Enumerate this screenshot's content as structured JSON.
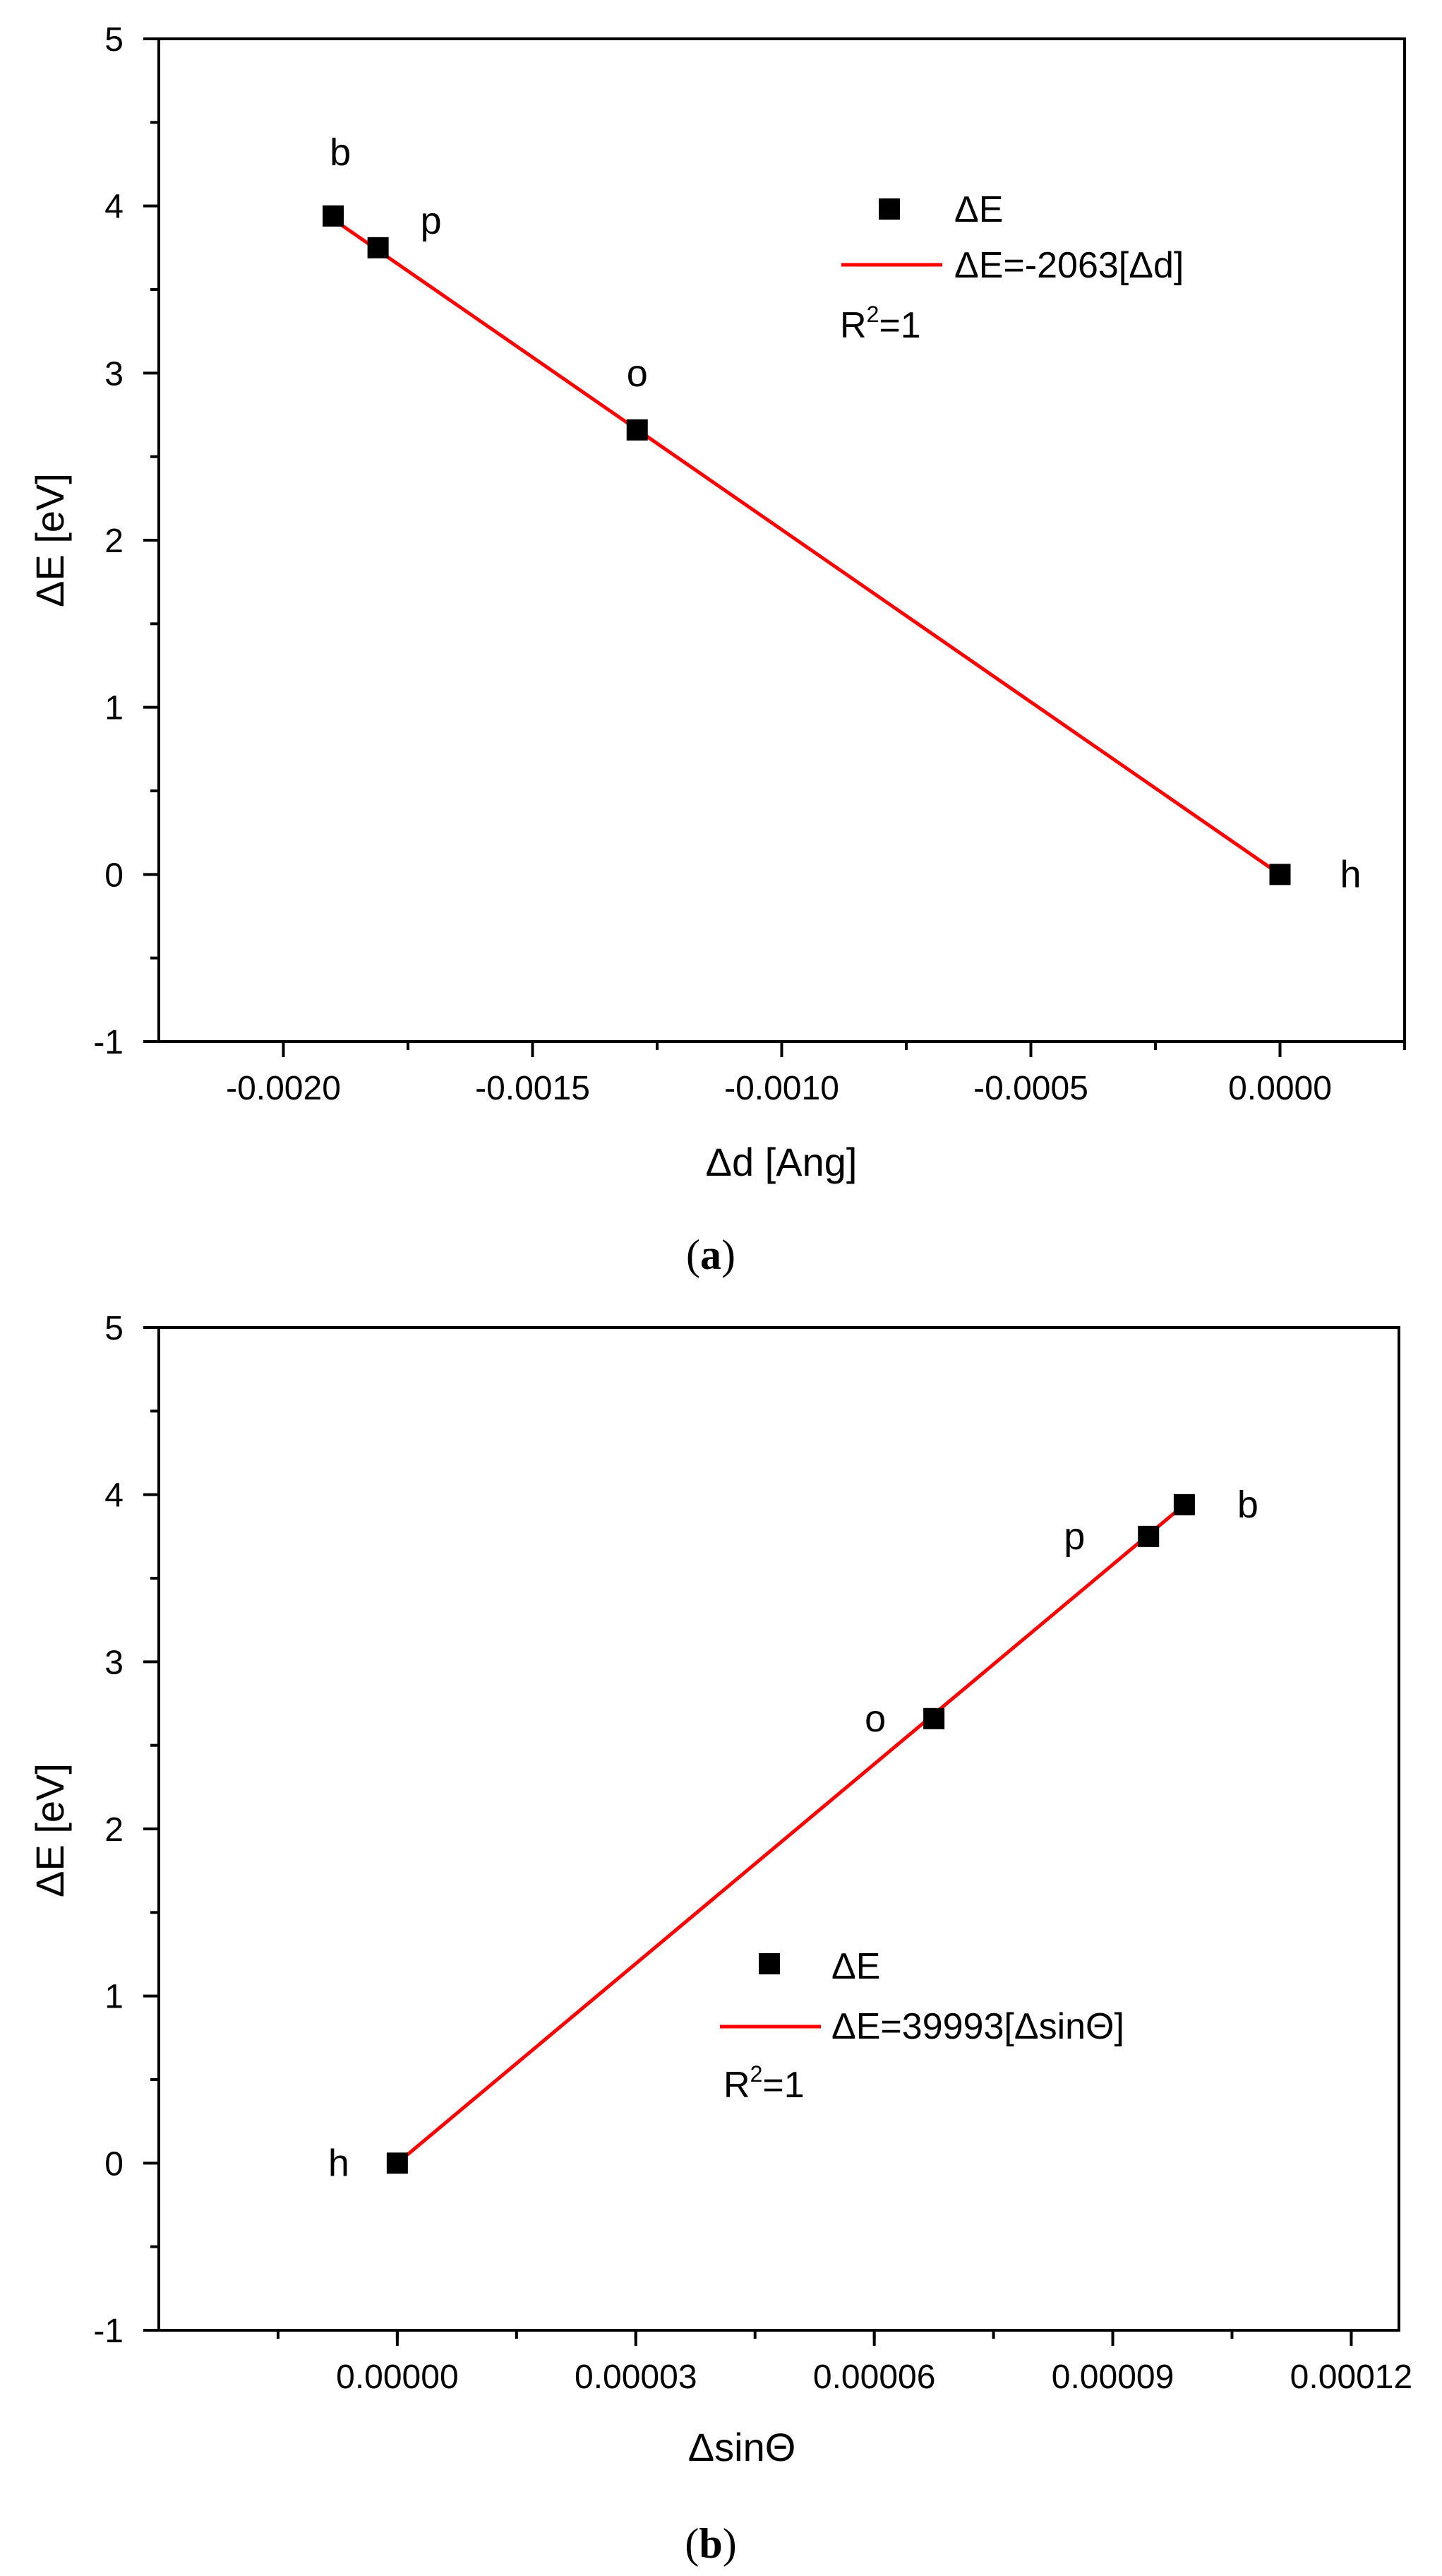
{
  "chart_data": [
    {
      "type": "scatter",
      "panel_label": "a",
      "xlabel": "Δd [Ang]",
      "ylabel": "ΔE [eV]",
      "xlim": [
        -0.00225,
        0.00025
      ],
      "ylim": [
        -1,
        5
      ],
      "x_ticks": [
        -0.002,
        -0.0015,
        -0.001,
        -0.0005,
        0.0
      ],
      "x_tick_labels": [
        "-0.0020",
        "-0.0015",
        "-0.0010",
        "-0.0005",
        "0.0000"
      ],
      "y_ticks": [
        -1,
        0,
        1,
        2,
        3,
        4,
        5
      ],
      "y_tick_labels": [
        "-1",
        "0",
        "1",
        "2",
        "3",
        "4",
        "5"
      ],
      "series": [
        {
          "name": "ΔE",
          "kind": "points",
          "color": "#000000",
          "points": [
            {
              "label": "b",
              "x": -0.0019,
              "y": 3.94
            },
            {
              "label": "p",
              "x": -0.00181,
              "y": 3.75
            },
            {
              "label": "o",
              "x": -0.00129,
              "y": 2.66
            },
            {
              "label": "h",
              "x": 0.0,
              "y": 0.0
            }
          ]
        },
        {
          "name": "ΔE=-2063[Δd]",
          "kind": "line",
          "color": "#ff0000",
          "x": [
            -0.0019,
            0.0
          ],
          "y": [
            3.92,
            0.0
          ]
        }
      ],
      "annotation": {
        "base": "R",
        "sup": "2",
        "rest": "=1"
      },
      "legend_position": "top-right"
    },
    {
      "type": "scatter",
      "panel_label": "b",
      "xlabel": "ΔsinΘ",
      "ylabel": "ΔE [eV]",
      "xlim": [
        -3e-05,
        0.000126
      ],
      "ylim": [
        -1,
        5
      ],
      "x_ticks": [
        0.0,
        3e-05,
        6e-05,
        9e-05,
        0.00012
      ],
      "x_tick_labels": [
        "0.00000",
        "0.00003",
        "0.00006",
        "0.00009",
        "0.00012"
      ],
      "y_ticks": [
        -1,
        0,
        1,
        2,
        3,
        4,
        5
      ],
      "y_tick_labels": [
        "-1",
        "0",
        "1",
        "2",
        "3",
        "4",
        "5"
      ],
      "series": [
        {
          "name": "ΔE",
          "kind": "points",
          "color": "#000000",
          "points": [
            {
              "label": "h",
              "x": 0.0,
              "y": 0.0
            },
            {
              "label": "o",
              "x": 6.75e-05,
              "y": 2.66
            },
            {
              "label": "p",
              "x": 9.45e-05,
              "y": 3.75
            },
            {
              "label": "b",
              "x": 9.9e-05,
              "y": 3.94
            }
          ]
        },
        {
          "name": "ΔE=39993[ΔsinΘ]",
          "kind": "line",
          "color": "#ff0000",
          "x": [
            0.0,
            9.9e-05
          ],
          "y": [
            0.0,
            3.94
          ]
        }
      ],
      "annotation": {
        "base": "R",
        "sup": "2",
        "rest": "=1"
      },
      "legend_position": "center"
    }
  ],
  "captions": {
    "a": {
      "open": "(",
      "letter": "a",
      "close": ")"
    },
    "b": {
      "open": "(",
      "letter": "b",
      "close": ")"
    }
  }
}
